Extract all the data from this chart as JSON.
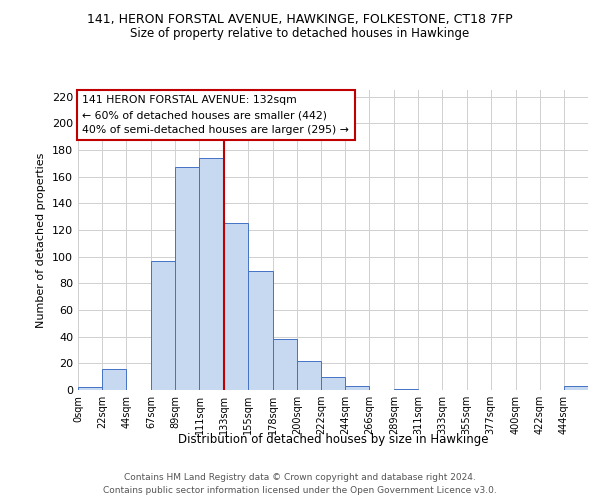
{
  "title": "141, HERON FORSTAL AVENUE, HAWKINGE, FOLKESTONE, CT18 7FP",
  "subtitle": "Size of property relative to detached houses in Hawkinge",
  "xlabel": "Distribution of detached houses by size in Hawkinge",
  "ylabel": "Number of detached properties",
  "footer_line1": "Contains HM Land Registry data © Crown copyright and database right 2024.",
  "footer_line2": "Contains public sector information licensed under the Open Government Licence v3.0.",
  "bar_labels": [
    "0sqm",
    "22sqm",
    "44sqm",
    "67sqm",
    "89sqm",
    "111sqm",
    "133sqm",
    "155sqm",
    "178sqm",
    "200sqm",
    "222sqm",
    "244sqm",
    "266sqm",
    "289sqm",
    "311sqm",
    "333sqm",
    "355sqm",
    "377sqm",
    "400sqm",
    "422sqm",
    "444sqm"
  ],
  "bar_heights": [
    2,
    16,
    0,
    97,
    167,
    174,
    125,
    89,
    38,
    22,
    10,
    3,
    0,
    1,
    0,
    0,
    0,
    0,
    0,
    0,
    3
  ],
  "bar_color": "#c6d9f0",
  "bar_edge_color": "#4472c4",
  "property_line_color": "#c00000",
  "annotation_text_line1": "141 HERON FORSTAL AVENUE: 132sqm",
  "annotation_text_line2": "← 60% of detached houses are smaller (442)",
  "annotation_text_line3": "40% of semi-detached houses are larger (295) →",
  "annotation_box_color": "#ffffff",
  "annotation_box_edge_color": "#c00000",
  "ylim": [
    0,
    225
  ],
  "yticks": [
    0,
    20,
    40,
    60,
    80,
    100,
    120,
    140,
    160,
    180,
    200,
    220
  ],
  "bin_starts": [
    0,
    22,
    44,
    67,
    89,
    111,
    133,
    155,
    178,
    200,
    222,
    244,
    266,
    289,
    311,
    333,
    355,
    377,
    400,
    422,
    444
  ],
  "background_color": "#ffffff",
  "grid_color": "#d0d0d0"
}
